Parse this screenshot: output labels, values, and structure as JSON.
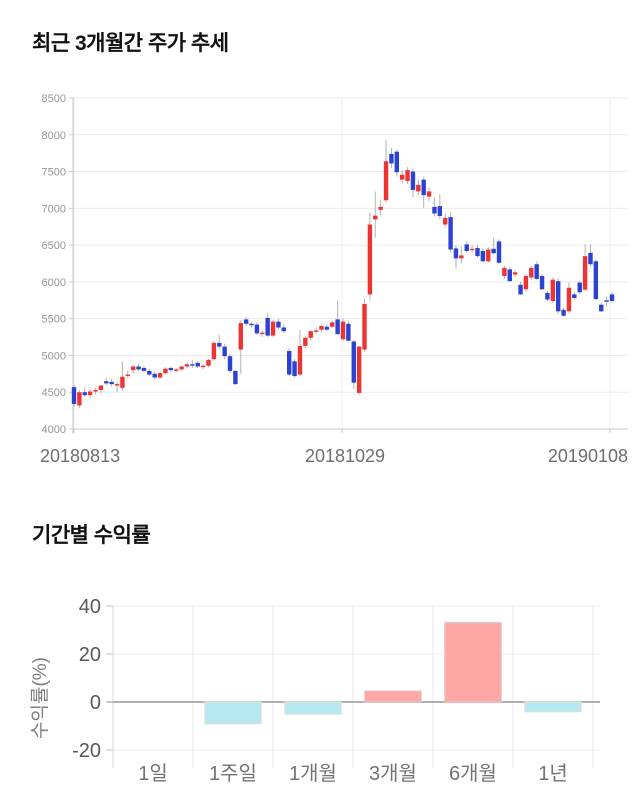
{
  "chart_data": [
    {
      "type": "candlestick",
      "title": "최근 3개월간 주가 추세",
      "x_labels": [
        "20180813",
        "20181029",
        "20190108"
      ],
      "y_ticks": [
        8500,
        8000,
        7500,
        7000,
        6500,
        6000,
        5500,
        5000,
        4500,
        4000
      ],
      "ylim": [
        4000,
        8500
      ],
      "grid": true,
      "legend": "none",
      "colors": {
        "up": "#ee3432",
        "down": "#2b42d3",
        "wick": "#b3b3b3"
      },
      "candles_ohlc": [
        [
          4570,
          4600,
          4300,
          4340
        ],
        [
          4320,
          4530,
          4280,
          4500
        ],
        [
          4500,
          4560,
          4440,
          4460
        ],
        [
          4460,
          4530,
          4420,
          4510
        ],
        [
          4510,
          4560,
          4470,
          4530
        ],
        [
          4530,
          4600,
          4490,
          4590
        ],
        [
          4650,
          4700,
          4600,
          4620
        ],
        [
          4640,
          4680,
          4580,
          4610
        ],
        [
          4600,
          4640,
          4500,
          4610
        ],
        [
          4560,
          4920,
          4520,
          4710
        ],
        [
          4730,
          4790,
          4690,
          4740
        ],
        [
          4800,
          4870,
          4760,
          4850
        ],
        [
          4850,
          4890,
          4790,
          4810
        ],
        [
          4830,
          4860,
          4770,
          4790
        ],
        [
          4790,
          4820,
          4720,
          4740
        ],
        [
          4750,
          4780,
          4670,
          4700
        ],
        [
          4700,
          4780,
          4680,
          4760
        ],
        [
          4760,
          4840,
          4740,
          4820
        ],
        [
          4830,
          4850,
          4780,
          4800
        ],
        [
          4800,
          4830,
          4770,
          4810
        ],
        [
          4810,
          4860,
          4790,
          4850
        ],
        [
          4850,
          4900,
          4820,
          4880
        ],
        [
          4880,
          4940,
          4830,
          4870
        ],
        [
          4900,
          4920,
          4830,
          4850
        ],
        [
          4850,
          4880,
          4810,
          4860
        ],
        [
          4860,
          4950,
          4840,
          4940
        ],
        [
          4950,
          5200,
          4930,
          5170
        ],
        [
          5170,
          5280,
          5080,
          5120
        ],
        [
          5120,
          5160,
          4950,
          4990
        ],
        [
          4990,
          5020,
          4760,
          4790
        ],
        [
          4790,
          4800,
          4600,
          4610
        ],
        [
          5080,
          5480,
          4750,
          5440
        ],
        [
          5490,
          5530,
          5400,
          5430
        ],
        [
          5430,
          5460,
          5380,
          5420
        ],
        [
          5420,
          5450,
          5280,
          5300
        ],
        [
          5290,
          5340,
          5250,
          5310
        ],
        [
          5510,
          5580,
          5250,
          5270
        ],
        [
          5270,
          5480,
          5250,
          5460
        ],
        [
          5460,
          5500,
          5350,
          5380
        ],
        [
          5380,
          5420,
          5300,
          5330
        ],
        [
          5060,
          5100,
          4720,
          4740
        ],
        [
          4920,
          4950,
          4700,
          4720
        ],
        [
          4740,
          5350,
          4720,
          5130
        ],
        [
          5130,
          5260,
          5100,
          5240
        ],
        [
          5240,
          5340,
          5200,
          5330
        ],
        [
          5330,
          5380,
          5300,
          5340
        ],
        [
          5350,
          5420,
          5320,
          5400
        ],
        [
          5390,
          5420,
          5330,
          5350
        ],
        [
          5390,
          5470,
          5370,
          5450
        ],
        [
          5490,
          5740,
          5280,
          5290
        ],
        [
          5220,
          5500,
          5200,
          5460
        ],
        [
          5430,
          5470,
          5190,
          5200
        ],
        [
          5190,
          5210,
          4540,
          4630
        ],
        [
          4490,
          5130,
          4470,
          5120
        ],
        [
          5080,
          5770,
          5050,
          5700
        ],
        [
          5830,
          6940,
          5750,
          6780
        ],
        [
          6850,
          7230,
          6600,
          6900
        ],
        [
          6980,
          7120,
          6900,
          7020
        ],
        [
          7110,
          7930,
          7080,
          7640
        ],
        [
          7740,
          7820,
          7550,
          7610
        ],
        [
          7770,
          7800,
          7430,
          7490
        ],
        [
          7390,
          7520,
          7340,
          7455
        ],
        [
          7370,
          7560,
          7330,
          7520
        ],
        [
          7500,
          7540,
          7150,
          7250
        ],
        [
          7230,
          7390,
          7180,
          7320
        ],
        [
          7390,
          7430,
          7000,
          7180
        ],
        [
          7160,
          7280,
          7100,
          7230
        ],
        [
          7020,
          7150,
          6890,
          6930
        ],
        [
          7030,
          7190,
          6850,
          6895
        ],
        [
          6780,
          6930,
          6740,
          6870
        ],
        [
          6880,
          6950,
          6400,
          6440
        ],
        [
          6455,
          6500,
          6180,
          6320
        ],
        [
          6320,
          6480,
          6250,
          6360
        ],
        [
          6510,
          6560,
          6400,
          6420
        ],
        [
          6440,
          6500,
          6390,
          6450
        ],
        [
          6460,
          6500,
          6330,
          6350
        ],
        [
          6420,
          6450,
          6270,
          6280
        ],
        [
          6280,
          6470,
          6260,
          6440
        ],
        [
          6450,
          6600,
          6370,
          6390
        ],
        [
          6550,
          6580,
          6250,
          6260
        ],
        [
          6080,
          6220,
          6040,
          6190
        ],
        [
          6170,
          6200,
          6000,
          6010
        ],
        [
          6100,
          6160,
          6060,
          6130
        ],
        [
          5960,
          6000,
          5820,
          5830
        ],
        [
          5900,
          6100,
          5870,
          6080
        ],
        [
          6060,
          6220,
          6030,
          6190
        ],
        [
          6240,
          6280,
          6030,
          6040
        ],
        [
          6080,
          6100,
          5890,
          5900
        ],
        [
          5850,
          5880,
          5740,
          5760
        ],
        [
          5740,
          6060,
          5720,
          6030
        ],
        [
          6010,
          6040,
          5560,
          5600
        ],
        [
          5620,
          5650,
          5530,
          5540
        ],
        [
          5600,
          5990,
          5580,
          5920
        ],
        [
          5830,
          5860,
          5760,
          5780
        ],
        [
          5990,
          6010,
          5830,
          5860
        ],
        [
          5895,
          6510,
          5880,
          6350
        ],
        [
          6395,
          6510,
          6200,
          6240
        ],
        [
          6280,
          6300,
          5760,
          5765
        ],
        [
          5690,
          5720,
          5590,
          5600
        ],
        [
          5750,
          5800,
          5670,
          5745
        ],
        [
          5830,
          5850,
          5720,
          5740
        ]
      ]
    },
    {
      "type": "bar",
      "title": "기간별 수익률",
      "ylabel": "수익률(%)",
      "categories": [
        "1일",
        "1주일",
        "1개월",
        "3개월",
        "6개월",
        "1년"
      ],
      "values": [
        0,
        -9,
        -5,
        4.5,
        33,
        -4
      ],
      "y_ticks": [
        40,
        20,
        0,
        -20
      ],
      "ylim": [
        -20,
        40
      ],
      "grid": true,
      "positive_color": "#ffa7a5",
      "negative_color": "#b5e9f1",
      "positive_border": "#e5bcba",
      "negative_border": "#d9dede"
    }
  ]
}
